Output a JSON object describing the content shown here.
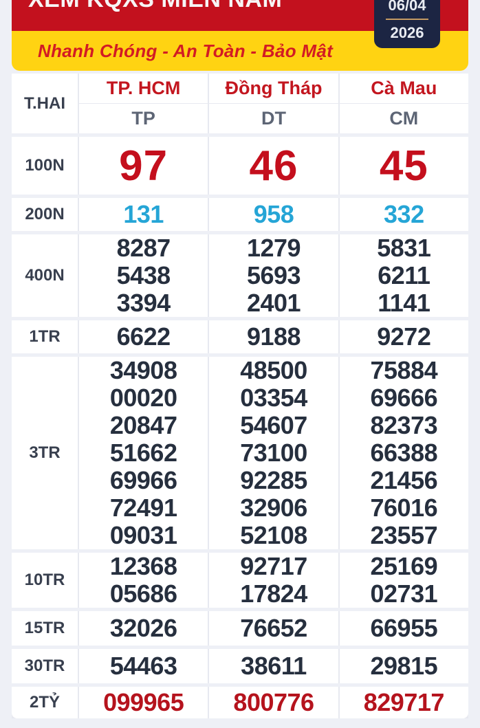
{
  "header": {
    "title": "XEM KQXS MIỀN NAM",
    "tagline": "Nhanh Chóng - An Toàn - Bảo Mật",
    "date": {
      "day_month": "06/04",
      "year": "2026"
    }
  },
  "table": {
    "day_label": "T.HAI",
    "provinces": [
      "TP. HCM",
      "Đồng Tháp",
      "Cà Mau"
    ],
    "province_codes": [
      "TP",
      "DT",
      "CM"
    ],
    "rows": [
      {
        "prize": "100N",
        "values": [
          "97",
          "46",
          "45"
        ]
      },
      {
        "prize": "200N",
        "values": [
          "131",
          "958",
          "332"
        ]
      },
      {
        "prize": "400N",
        "values": [
          "8287\n5438\n3394",
          "1279\n5693\n2401",
          "5831\n6211\n1141"
        ]
      },
      {
        "prize": "1TR",
        "values": [
          "6622",
          "9188",
          "9272"
        ]
      },
      {
        "prize": "3TR",
        "values": [
          "34908\n00020\n20847\n51662\n69966\n72491\n09031",
          "48500\n03354\n54607\n73100\n92285\n32906\n52108",
          "75884\n69666\n82373\n66388\n21456\n76016\n23557"
        ]
      },
      {
        "prize": "10TR",
        "values": [
          "12368\n05686",
          "92717\n17824",
          "25169\n02731"
        ]
      },
      {
        "prize": "15TR",
        "values": [
          "32026",
          "76652",
          "66955"
        ]
      },
      {
        "prize": "30TR",
        "values": [
          "54463",
          "38611",
          "29815"
        ]
      },
      {
        "prize": "2TỶ",
        "values": [
          "099965",
          "800776",
          "829717"
        ]
      }
    ]
  },
  "colors": {
    "band_red": "#c3111e",
    "band_yellow": "#ffd312",
    "date_box_navy": "#1c2543",
    "accent_gold": "#c59a63",
    "prize_red": "#c40f1d",
    "prize_cyan": "#25a5d6",
    "number_dark": "#262f3e",
    "page_bg": "#eef0f6"
  }
}
